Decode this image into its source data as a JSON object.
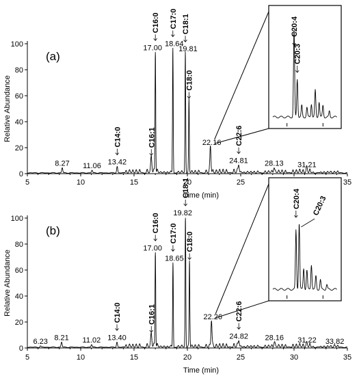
{
  "chart_data": [
    {
      "type": "line",
      "panel_label": "(a)",
      "xlabel": "Time (min)",
      "ylabel": "Relative Abundance",
      "xlim": [
        5,
        35
      ],
      "ylim": [
        0,
        100
      ],
      "xticks": [
        "5",
        "10",
        "15",
        "20",
        "25",
        "30",
        "35"
      ],
      "yticks": [
        "0",
        "20",
        "40",
        "60",
        "80",
        "100"
      ],
      "peaks": [
        {
          "t": 8.27,
          "h": 4,
          "label": "8.27"
        },
        {
          "t": 11.06,
          "h": 2,
          "label": "11.06"
        },
        {
          "t": 13.42,
          "h": 5,
          "label": "13.42",
          "lipid": "C14:0"
        },
        {
          "t": 16.62,
          "h": 12,
          "label": "",
          "lipid": "C16:1"
        },
        {
          "t": 17.0,
          "h": 93,
          "label": "17.00",
          "lipid": "C16:0"
        },
        {
          "t": 18.64,
          "h": 96,
          "label": "18.64",
          "lipid": "C17:0"
        },
        {
          "t": 19.81,
          "h": 92,
          "label": "19.81",
          "lipid": "C18:1"
        },
        {
          "t": 20.15,
          "h": 56,
          "label": "",
          "lipid": "C18:0"
        },
        {
          "t": 22.16,
          "h": 20,
          "label": "22.16"
        },
        {
          "t": 24.81,
          "h": 6,
          "label": "24.81",
          "lipid": "C22:6"
        },
        {
          "t": 28.13,
          "h": 4,
          "label": "28.13"
        },
        {
          "t": 31.21,
          "h": 3,
          "label": "31.21"
        }
      ],
      "inset": {
        "lipids": [
          "C20:4",
          "C20:3"
        ]
      }
    },
    {
      "type": "line",
      "panel_label": "(b)",
      "xlabel": "Time (min)",
      "ylabel": "Relative Abundance",
      "xlim": [
        5,
        35
      ],
      "ylim": [
        0,
        100
      ],
      "xticks": [
        "5",
        "10",
        "15",
        "20",
        "25",
        "30",
        "35"
      ],
      "yticks": [
        "0",
        "20",
        "40",
        "60",
        "80",
        "100"
      ],
      "peaks": [
        {
          "t": 6.23,
          "h": 1,
          "label": "6.23"
        },
        {
          "t": 8.21,
          "h": 4,
          "label": "8.21"
        },
        {
          "t": 11.02,
          "h": 2,
          "label": "11.02"
        },
        {
          "t": 13.4,
          "h": 4,
          "label": "13.40",
          "lipid": "C14:0"
        },
        {
          "t": 16.62,
          "h": 10,
          "label": "",
          "lipid": "C16:1"
        },
        {
          "t": 17.0,
          "h": 73,
          "label": "17.00",
          "lipid": "C16:0"
        },
        {
          "t": 18.65,
          "h": 65,
          "label": "18.65",
          "lipid": "C17:0"
        },
        {
          "t": 19.82,
          "h": 100,
          "label": "19.82",
          "lipid": "C18:1"
        },
        {
          "t": 20.2,
          "h": 66,
          "label": "",
          "lipid": "C18:0"
        },
        {
          "t": 22.26,
          "h": 20,
          "label": "22.26"
        },
        {
          "t": 24.82,
          "h": 5,
          "label": "24.82",
          "lipid": "C22:6"
        },
        {
          "t": 28.16,
          "h": 4,
          "label": "28.16"
        },
        {
          "t": 31.22,
          "h": 2,
          "label": "31.22"
        },
        {
          "t": 33.82,
          "h": 1,
          "label": "33.82"
        }
      ],
      "inset": {
        "lipids": [
          "C20:4",
          "C20:3"
        ]
      }
    }
  ]
}
